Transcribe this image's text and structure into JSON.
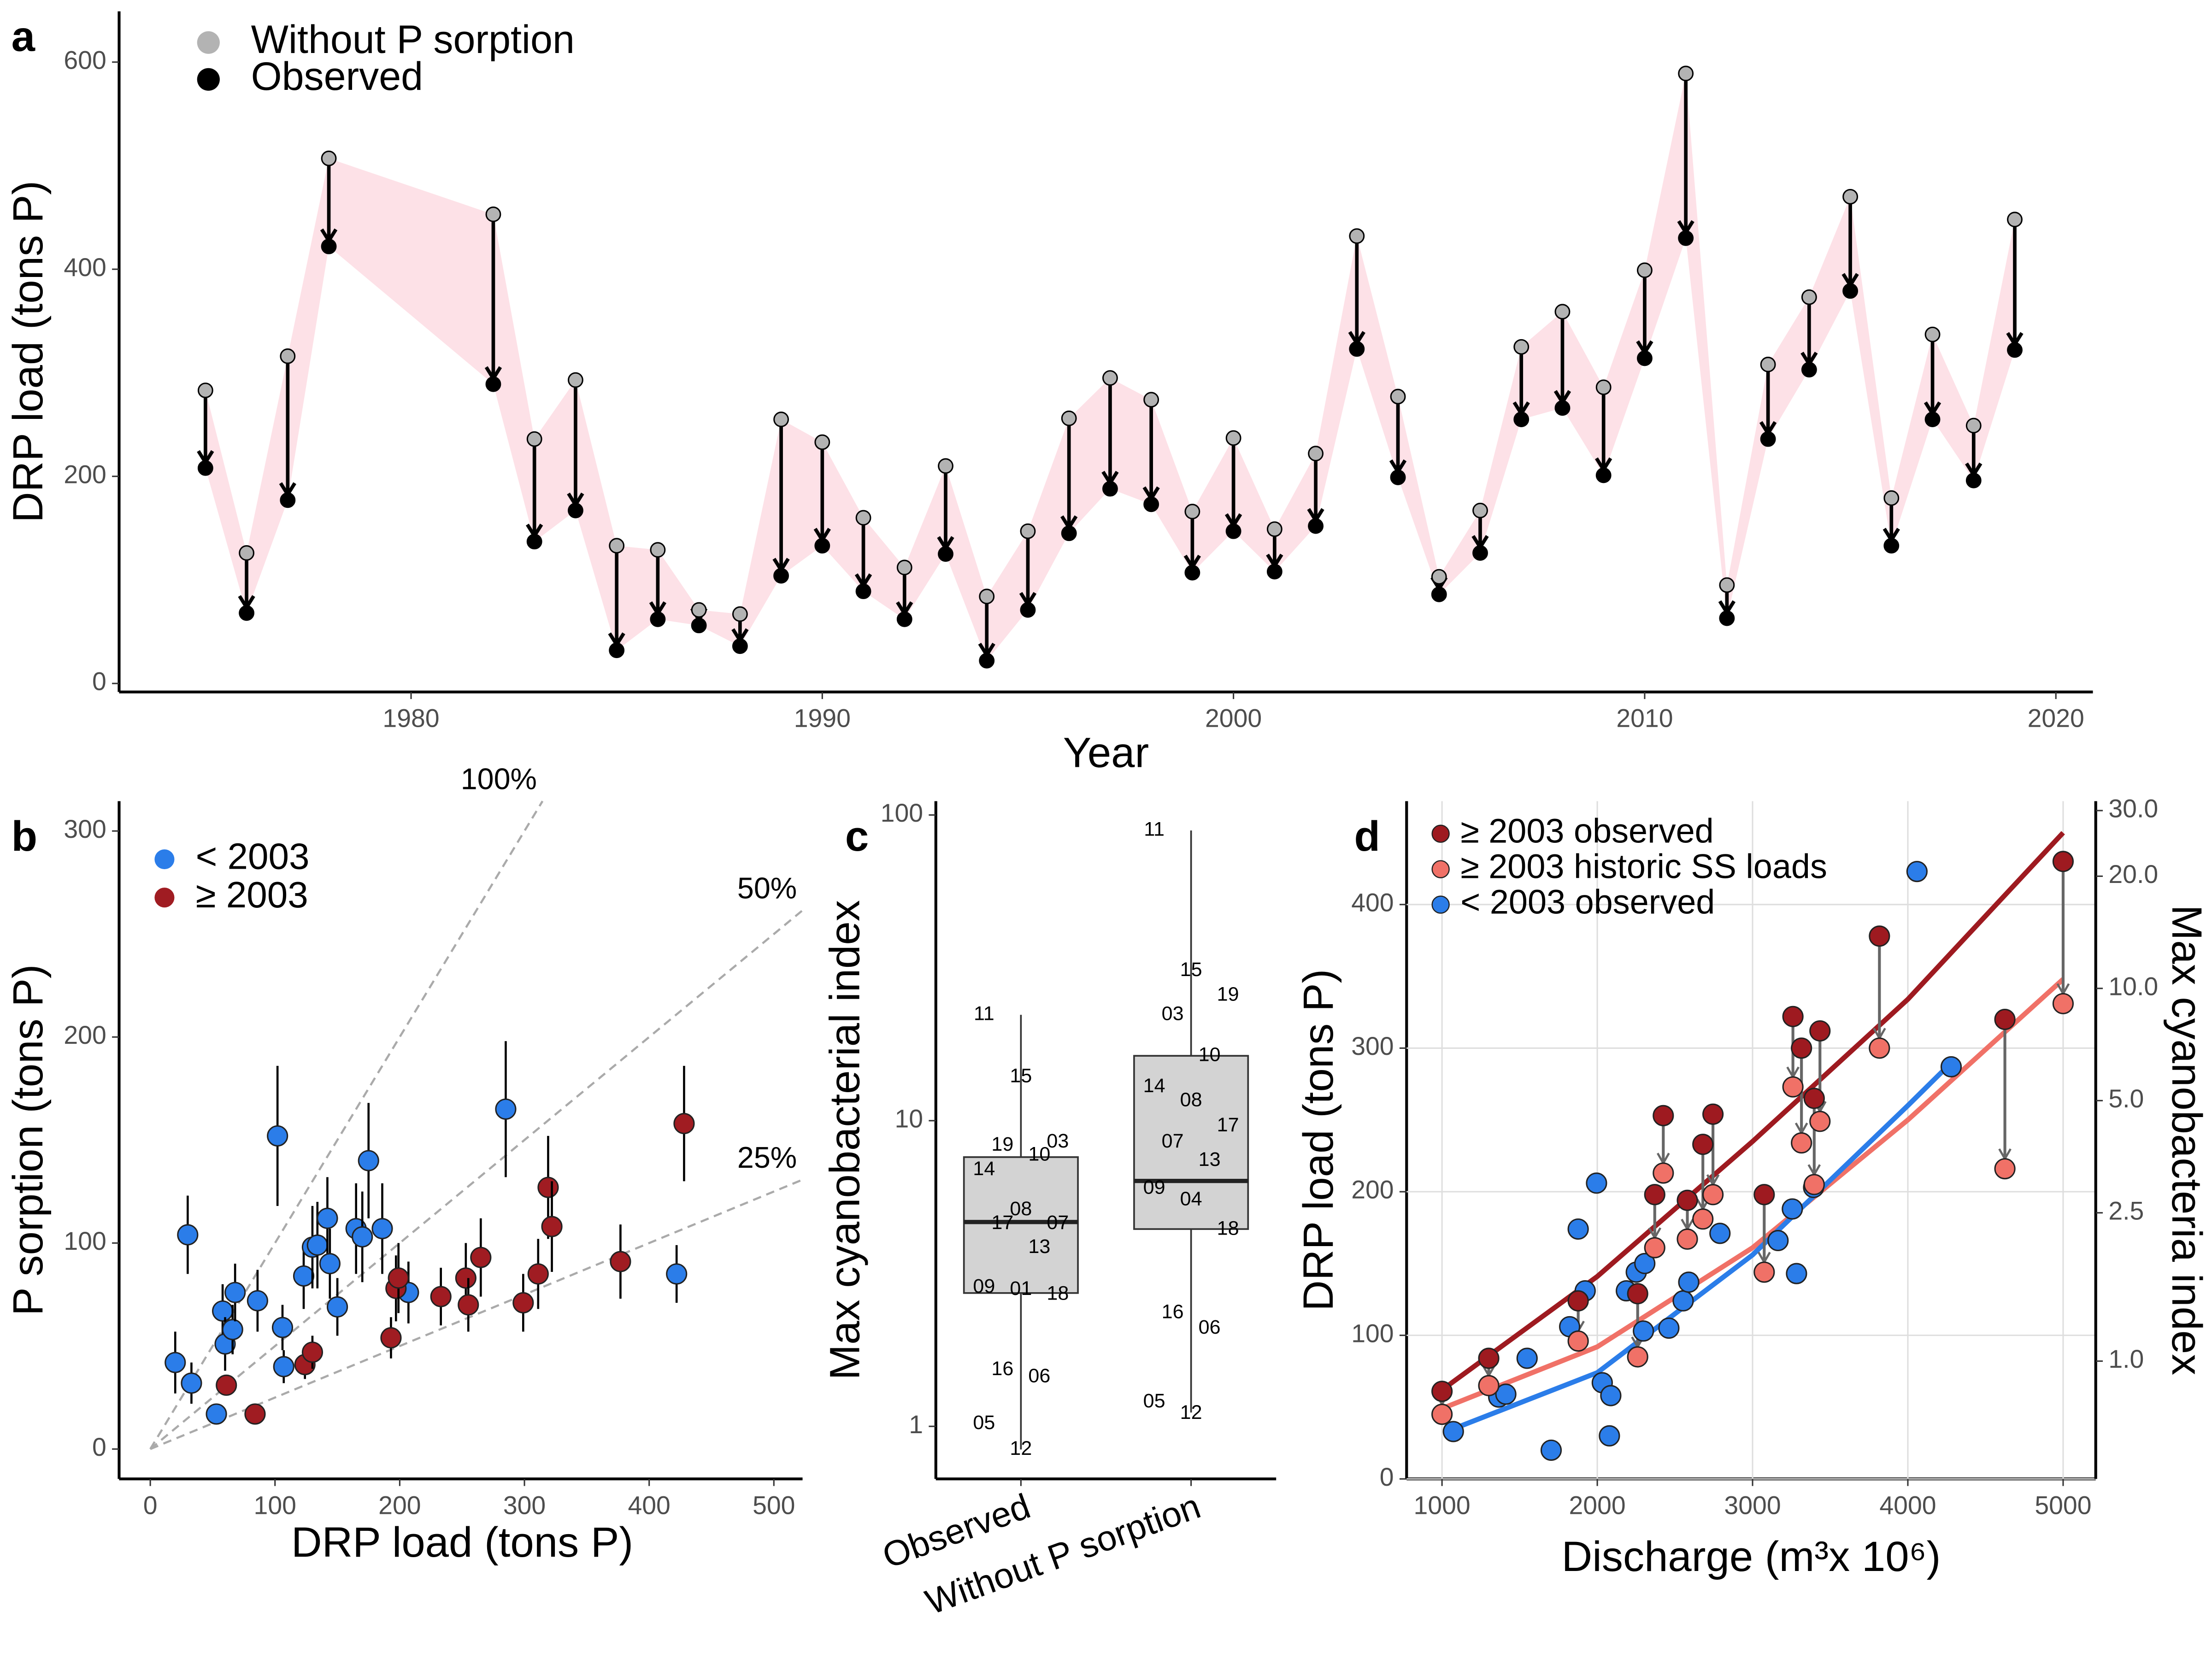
{
  "chart_data": [
    {
      "type": "arrow",
      "title": "a",
      "x_label": "Year",
      "y_label": "DRP load (tons P)",
      "x": [
        1975,
        1976,
        1977,
        1978,
        1982,
        1983,
        1984,
        1985,
        1986,
        1987,
        1988,
        1989,
        1990,
        1991,
        1992,
        1993,
        1994,
        1995,
        1996,
        1997,
        1998,
        1999,
        2000,
        2001,
        2002,
        2003,
        2004,
        2005,
        2006,
        2007,
        2008,
        2009,
        2010,
        2011,
        2012,
        2013,
        2014,
        2015,
        2016,
        2017,
        2018,
        2019
      ],
      "series": [
        {
          "name": "Without P sorption",
          "color": "#b3b3b3",
          "values": [
            283,
            126,
            316,
            507,
            453,
            236,
            293,
            133,
            129,
            71,
            67,
            255,
            233,
            160,
            112,
            210,
            84,
            147,
            256,
            295,
            274,
            166,
            237,
            149,
            222,
            432,
            277,
            103,
            167,
            325,
            359,
            286,
            399,
            589,
            95,
            308,
            373,
            470,
            179,
            337,
            249,
            448
          ]
        },
        {
          "name": "Observed",
          "color": "#000000",
          "values": [
            208,
            68,
            177,
            422,
            289,
            137,
            167,
            32,
            62,
            56,
            36,
            104,
            133,
            89,
            62,
            125,
            22,
            71,
            145,
            188,
            173,
            107,
            147,
            108,
            152,
            323,
            199,
            86,
            126,
            255,
            266,
            201,
            314,
            430,
            63,
            236,
            303,
            379,
            133,
            255,
            196,
            322
          ]
        }
      ],
      "ribbon_color": "#fde1e7",
      "xlim": [
        1972.9,
        2020.9
      ],
      "ylim": [
        -8.2,
        649
      ],
      "xticks": [
        1980,
        1990,
        2000,
        2010,
        2020
      ],
      "yticks": [
        0,
        200,
        400,
        600
      ]
    },
    {
      "type": "scatter",
      "title": "b",
      "x_label": "DRP load (tons P)",
      "y_label": "P sorption (tons P)",
      "series": [
        {
          "name": "< 2003",
          "color": "#2b7de9",
          "x": [
            20,
            30,
            33,
            53,
            58,
            60,
            66,
            68,
            86,
            102,
            106,
            107,
            123,
            130,
            134,
            142,
            144,
            150,
            165,
            170,
            175,
            186,
            207,
            285,
            422
          ],
          "values": [
            42,
            104,
            32,
            17,
            67,
            51,
            58,
            76,
            72,
            152,
            59,
            40,
            84,
            98,
            99,
            112,
            90,
            69,
            107,
            103,
            140,
            107,
            76,
            165,
            85
          ],
          "errors": [
            15,
            19,
            10,
            5,
            13,
            13,
            12,
            14,
            15,
            34,
            11,
            8,
            16,
            20,
            21,
            20,
            17,
            14,
            22,
            22,
            28,
            22,
            15,
            33,
            14
          ]
        },
        {
          "name": "≥ 2003",
          "color": "#a01c22",
          "x": [
            61,
            84,
            124,
            130,
            193,
            197,
            199,
            233,
            253,
            255,
            265,
            299,
            311,
            319,
            322,
            377,
            428
          ],
          "values": [
            31,
            17,
            41,
            47,
            54,
            78,
            83,
            74,
            83,
            70,
            93,
            71,
            85,
            127,
            108,
            91,
            158
          ],
          "errors": [
            5,
            4,
            7,
            8,
            10,
            16,
            17,
            14,
            17,
            13,
            19,
            14,
            17,
            25,
            22,
            18,
            28
          ]
        }
      ],
      "ref_lines": [
        {
          "value": 100,
          "label": "100%"
        },
        {
          "value": 50,
          "label": "50%"
        },
        {
          "value": 25,
          "label": "25%"
        }
      ],
      "ref_color": "#aaaaaa",
      "xlim": [
        -25,
        523
      ],
      "ylim": [
        -14.5,
        314.5
      ],
      "xticks": [
        0,
        100,
        200,
        300,
        400,
        500
      ],
      "yticks": [
        0,
        100,
        200,
        300
      ]
    },
    {
      "type": "box",
      "title": "c",
      "y_label": "Max cyanobacterial index",
      "log_y": true,
      "categories": [
        "Observed",
        "Without P sorption"
      ],
      "box_color": "#d3d3d3",
      "boxes": [
        {
          "min": 0.84,
          "q1": 2.73,
          "median": 4.66,
          "q3": 7.6,
          "max": 22.2,
          "points": [
            {
              "label": "11",
              "value": 22.2
            },
            {
              "label": "15",
              "value": 13.9
            },
            {
              "label": "03",
              "value": 8.5
            },
            {
              "label": "19",
              "value": 8.3
            },
            {
              "label": "10",
              "value": 7.7
            },
            {
              "label": "14",
              "value": 6.9
            },
            {
              "label": "08",
              "value": 5.1
            },
            {
              "label": "07",
              "value": 4.6
            },
            {
              "label": "17",
              "value": 4.6
            },
            {
              "label": "13",
              "value": 3.84
            },
            {
              "label": "09",
              "value": 2.85
            },
            {
              "label": "01",
              "value": 2.8
            },
            {
              "label": "18",
              "value": 2.7
            },
            {
              "label": "16",
              "value": 1.53
            },
            {
              "label": "06",
              "value": 1.45
            },
            {
              "label": "05",
              "value": 1.02
            },
            {
              "label": "12",
              "value": 0.84
            }
          ]
        },
        {
          "min": 1.11,
          "q1": 4.42,
          "median": 6.35,
          "q3": 16.3,
          "max": 89,
          "points": [
            {
              "label": "11",
              "value": 89
            },
            {
              "label": "15",
              "value": 30.9
            },
            {
              "label": "19",
              "value": 25.7
            },
            {
              "label": "03",
              "value": 22.2
            },
            {
              "label": "10",
              "value": 16.3
            },
            {
              "label": "14",
              "value": 12.9
            },
            {
              "label": "08",
              "value": 11.6
            },
            {
              "label": "17",
              "value": 9.6
            },
            {
              "label": "07",
              "value": 8.5
            },
            {
              "label": "13",
              "value": 7.4
            },
            {
              "label": "09",
              "value": 6.0
            },
            {
              "label": "04",
              "value": 5.5
            },
            {
              "label": "18",
              "value": 4.4
            },
            {
              "label": "16",
              "value": 2.35
            },
            {
              "label": "06",
              "value": 2.09
            },
            {
              "label": "05",
              "value": 1.2
            },
            {
              "label": "12",
              "value": 1.1
            }
          ]
        }
      ],
      "ylim": [
        0.673,
        111
      ],
      "yticks": [
        1,
        10,
        100
      ]
    },
    {
      "type": "scatter-fit",
      "title": "d",
      "x_label": "Discharge (m³x 10⁶)",
      "y_label": "DRP load (tons P)",
      "y2_label": "Max cyanobacteria index",
      "series": [
        {
          "name": "≥ 2003 observed",
          "color": "#9e1a20",
          "x": [
            1000,
            1301,
            1877,
            2260,
            2370,
            2425,
            2580,
            2680,
            2745,
            3075,
            3260,
            3315,
            3397,
            3434,
            3817,
            4625,
            5000
          ],
          "values": [
            61,
            84,
            124,
            129,
            198,
            253,
            194,
            233,
            254,
            198,
            322,
            300,
            265,
            312,
            378,
            320,
            430
          ],
          "fit_x": [
            1000,
            2000,
            3000,
            4000,
            5000
          ],
          "fit_values": [
            62,
            141,
            235,
            334,
            450
          ]
        },
        {
          "name": "≥ 2003 historic SS loads",
          "color": "#f07167",
          "x": [
            1000,
            1301,
            1877,
            2260,
            2370,
            2425,
            2580,
            2680,
            2745,
            3075,
            3260,
            3315,
            3397,
            3434,
            3817,
            4625,
            5000
          ],
          "values": [
            45,
            65,
            96,
            85,
            161,
            213,
            167,
            181,
            198,
            144,
            273,
            234,
            205,
            249,
            300,
            216,
            331
          ],
          "fit_x": [
            1000,
            2000,
            3000,
            4000,
            5000
          ],
          "fit_values": [
            49,
            92,
            161,
            250,
            348
          ]
        },
        {
          "name": "< 2003 observed",
          "color": "#2b7de9",
          "x": [
            1073,
            1365,
            1411,
            1548,
            1703,
            1822,
            1877,
            1922,
            1995,
            2032,
            2078,
            2087,
            2187,
            2251,
            2297,
            2306,
            2461,
            2553,
            2589,
            2790,
            3164,
            3256,
            3283,
            3393,
            4059,
            4279
          ],
          "values": [
            33,
            57,
            59,
            84,
            20,
            106,
            174,
            131,
            206,
            67,
            30,
            58,
            131,
            144,
            103,
            150,
            105,
            124,
            137,
            171,
            166,
            188,
            143,
            203,
            423,
            287
          ],
          "fit_x": [
            1100,
            2000,
            3000,
            4000,
            4300
          ],
          "fit_values": [
            36,
            74,
            156,
            260,
            292
          ]
        }
      ],
      "arrow_color": "#666666",
      "xlim": [
        772,
        5210
      ],
      "ylim": [
        0,
        472
      ],
      "y2lim": [
        0.483,
        31.8
      ],
      "y2_log": true,
      "grid": true,
      "xticks": [
        1000,
        2000,
        3000,
        4000,
        5000
      ],
      "yticks": [
        0,
        100,
        200,
        300,
        400
      ],
      "y2ticks": [
        {
          "value": 1,
          "label": "1.0"
        },
        {
          "value": 2.5,
          "label": "2.5"
        },
        {
          "value": 5,
          "label": "5.0"
        },
        {
          "value": 10,
          "label": "10.0"
        },
        {
          "value": 20,
          "label": "20.0"
        },
        {
          "value": 30,
          "label": "30.0"
        }
      ]
    }
  ]
}
